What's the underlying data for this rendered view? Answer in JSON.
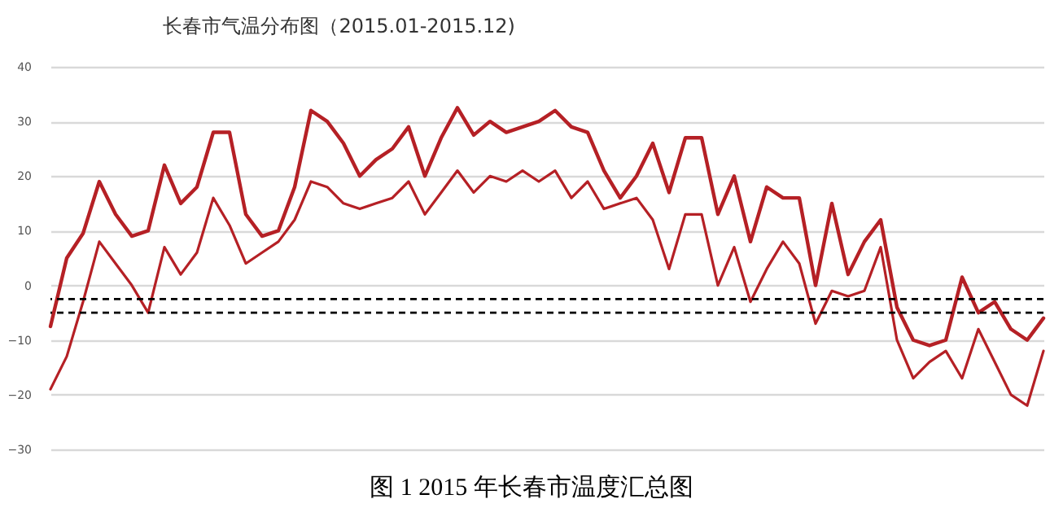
{
  "chart_data": {
    "type": "line",
    "title": "长春市气温分布图（2015.01-2015.12)",
    "annotations": [
      "图 1  2015 年长春市温度汇总图"
    ],
    "categories": [
      null,
      null,
      null,
      null,
      null,
      null,
      null,
      null,
      null,
      null,
      null,
      null,
      null,
      null,
      null,
      null,
      null,
      null,
      null,
      null,
      null,
      null,
      null,
      null,
      null,
      null,
      null,
      null,
      null,
      null,
      null,
      null,
      null,
      null,
      null,
      null,
      null,
      null,
      null,
      null,
      null,
      null,
      null,
      null,
      null,
      null,
      null,
      null,
      null,
      null,
      null,
      null,
      null,
      null,
      null,
      null,
      null,
      null,
      null,
      null,
      null,
      null
    ],
    "series": [
      {
        "color": "#b52025",
        "values": [
          -7.5,
          5,
          9.5,
          19,
          13,
          9,
          10,
          22,
          15,
          18,
          28,
          28,
          13,
          9,
          10,
          18,
          32,
          30,
          26,
          20,
          23,
          25,
          29,
          20,
          27,
          32.5,
          27.5,
          30,
          28,
          29,
          30,
          32,
          29,
          28,
          21,
          16,
          20,
          26,
          17,
          27,
          27,
          13,
          20,
          8,
          18,
          16,
          16,
          0,
          15,
          2,
          8,
          12,
          -4,
          -10,
          -11,
          -10,
          1.5,
          -5,
          -3,
          -8,
          -10,
          -6
        ]
      },
      {
        "color": "#b52025",
        "values": [
          -19,
          -13,
          -3,
          8,
          4,
          0,
          -5,
          7,
          2,
          6,
          16,
          11,
          4,
          6,
          8,
          12,
          19,
          18,
          15,
          14,
          15,
          16,
          19,
          13,
          17,
          21,
          17,
          20,
          19,
          21,
          19,
          21,
          16,
          19,
          14,
          15,
          16,
          12,
          3,
          13,
          13,
          0,
          7,
          -3,
          3,
          8,
          4,
          -7,
          -1,
          -2,
          -1,
          7,
          -10,
          -17,
          -14,
          -12,
          -17,
          -8,
          -14,
          -20,
          -22,
          -12
        ]
      }
    ],
    "ylim": [
      -30,
      40
    ],
    "yticks": [
      -30,
      -20,
      -10,
      0,
      10,
      20,
      30,
      40
    ],
    "grid": "y",
    "tick_labels": "y",
    "line_style": "solid",
    "ref_lines": [
      {
        "axis": "y",
        "value": -2.5,
        "color": "#000000",
        "line_style": "dashed"
      },
      {
        "axis": "y",
        "value": -5,
        "color": "#000000",
        "line_style": "dashed"
      }
    ]
  }
}
